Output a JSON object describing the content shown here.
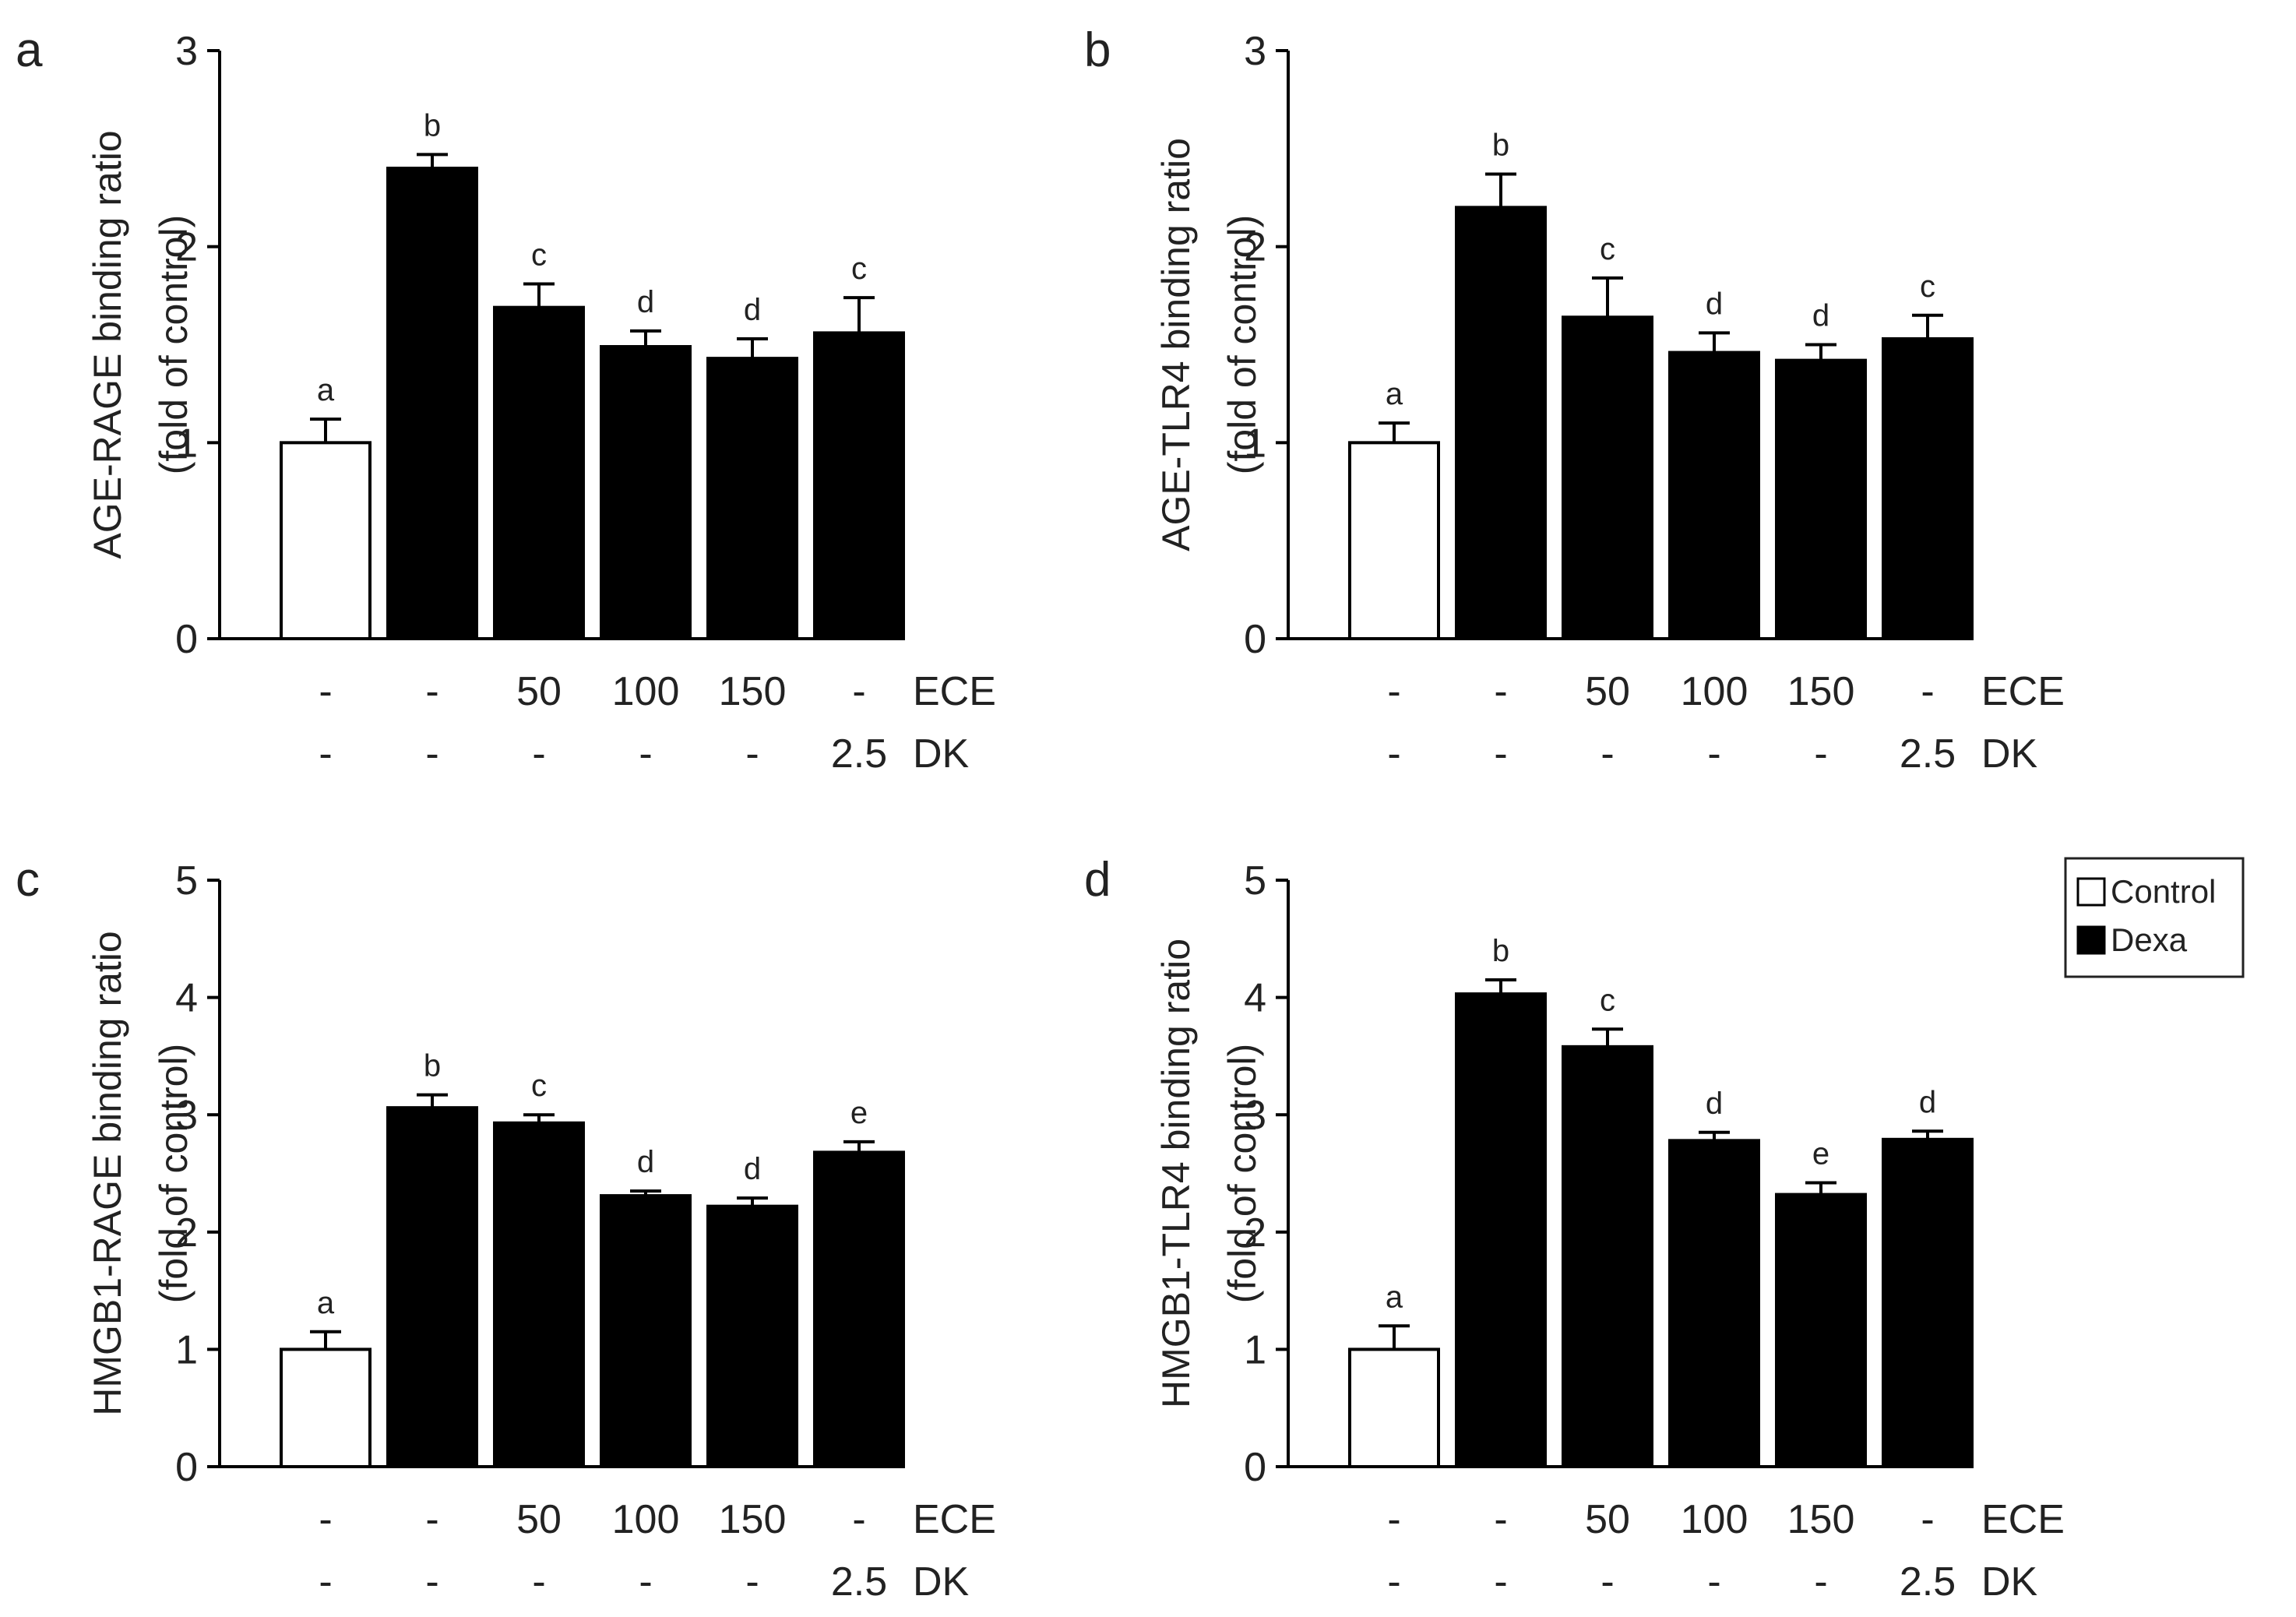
{
  "legend": [
    {
      "label": "Control",
      "fill": "#ffffff"
    },
    {
      "label": "Dexa",
      "fill": "#000000"
    }
  ],
  "condition_rows": [
    {
      "name": "ECE",
      "values": [
        "-",
        "-",
        "50",
        "100",
        "150",
        "-"
      ]
    },
    {
      "name": "DK",
      "values": [
        "-",
        "-",
        "-",
        "-",
        "-",
        "2.5"
      ]
    }
  ],
  "chart_data": [
    {
      "panel": "a",
      "type": "bar",
      "ylabel_lines": [
        "AGE-RAGE binding ratio",
        "(fold of control)"
      ],
      "ylim": [
        0,
        3
      ],
      "yticks": [
        0,
        1,
        2,
        3
      ],
      "groups": [
        "Control",
        "Dexa",
        "Dexa",
        "Dexa",
        "Dexa",
        "Dexa"
      ],
      "values": [
        1.0,
        2.4,
        1.69,
        1.49,
        1.43,
        1.56
      ],
      "errors": [
        0.12,
        0.07,
        0.12,
        0.08,
        0.1,
        0.18
      ],
      "significance": [
        "a",
        "b",
        "c",
        "d",
        "d",
        "c"
      ]
    },
    {
      "panel": "b",
      "type": "bar",
      "ylabel_lines": [
        "AGE-TLR4 binding ratio",
        "(fold of control)"
      ],
      "ylim": [
        0,
        3
      ],
      "yticks": [
        0,
        1,
        2,
        3
      ],
      "groups": [
        "Control",
        "Dexa",
        "Dexa",
        "Dexa",
        "Dexa",
        "Dexa"
      ],
      "values": [
        1.0,
        2.2,
        1.64,
        1.46,
        1.42,
        1.53
      ],
      "errors": [
        0.1,
        0.17,
        0.2,
        0.1,
        0.08,
        0.12
      ],
      "significance": [
        "a",
        "b",
        "c",
        "d",
        "d",
        "c"
      ]
    },
    {
      "panel": "c",
      "type": "bar",
      "ylabel_lines": [
        "HMGB1-RAGE binding ratio",
        "(fold of control)"
      ],
      "ylim": [
        0,
        5
      ],
      "yticks": [
        0,
        1,
        2,
        3,
        4,
        5
      ],
      "groups": [
        "Control",
        "Dexa",
        "Dexa",
        "Dexa",
        "Dexa",
        "Dexa"
      ],
      "values": [
        1.0,
        3.06,
        2.93,
        2.31,
        2.22,
        2.68
      ],
      "errors": [
        0.15,
        0.11,
        0.07,
        0.04,
        0.07,
        0.09
      ],
      "significance": [
        "a",
        "b",
        "c",
        "d",
        "d",
        "e"
      ]
    },
    {
      "panel": "d",
      "type": "bar",
      "ylabel_lines": [
        "HMGB1-TLR4 binding ratio",
        "(fold of control)"
      ],
      "ylim": [
        0,
        5
      ],
      "yticks": [
        0,
        1,
        2,
        3,
        4,
        5
      ],
      "groups": [
        "Control",
        "Dexa",
        "Dexa",
        "Dexa",
        "Dexa",
        "Dexa"
      ],
      "values": [
        1.0,
        4.03,
        3.58,
        2.78,
        2.32,
        2.79
      ],
      "errors": [
        0.2,
        0.12,
        0.15,
        0.07,
        0.1,
        0.07
      ],
      "significance": [
        "a",
        "b",
        "c",
        "d",
        "e",
        "d"
      ]
    }
  ]
}
